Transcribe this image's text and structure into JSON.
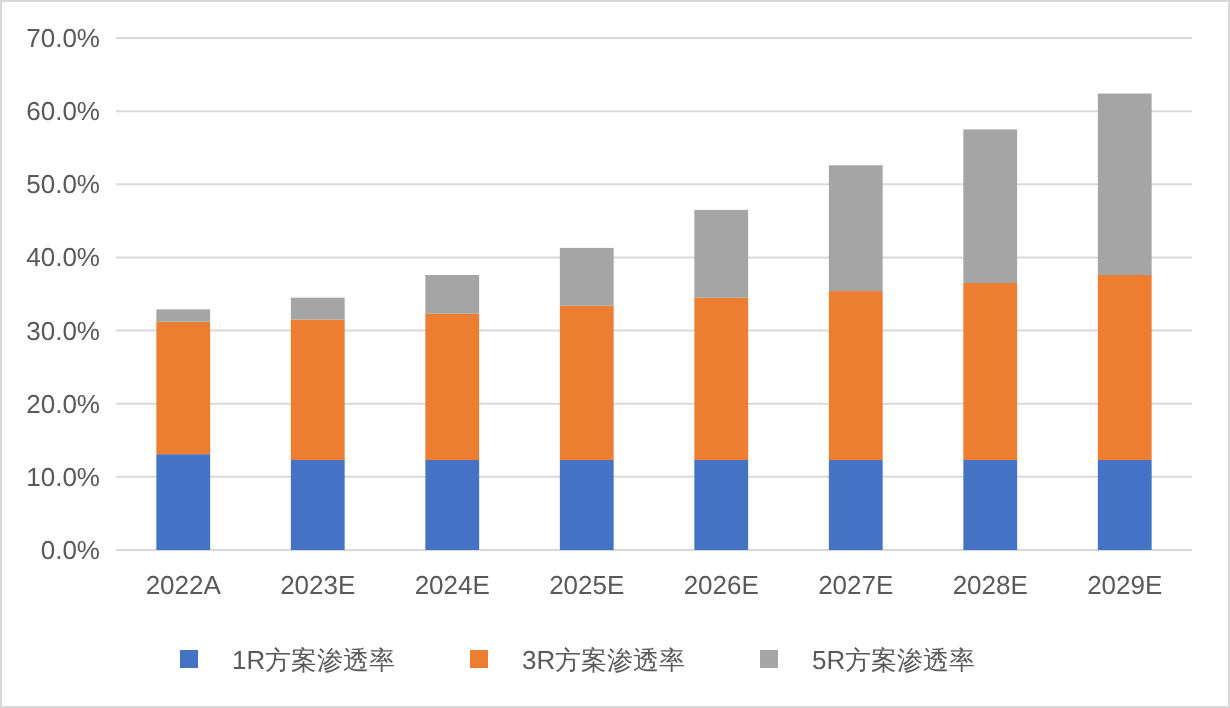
{
  "chart_data": {
    "type": "bar",
    "stacked": true,
    "categories": [
      "2022A",
      "2023E",
      "2024E",
      "2025E",
      "2026E",
      "2027E",
      "2028E",
      "2029E"
    ],
    "series": [
      {
        "name": "1R方案渗透率",
        "color": "#4472c4",
        "values": [
          13.1,
          12.3,
          12.3,
          12.3,
          12.3,
          12.3,
          12.3,
          12.3
        ]
      },
      {
        "name": "3R方案渗透率",
        "color": "#ed7d31",
        "values": [
          18.1,
          19.2,
          20.0,
          21.1,
          22.2,
          23.1,
          24.2,
          25.3
        ]
      },
      {
        "name": "5R方案渗透率",
        "color": "#a5a5a5",
        "values": [
          1.7,
          3.0,
          5.3,
          7.9,
          12.0,
          17.2,
          21.0,
          24.8
        ]
      }
    ],
    "ylim": [
      0,
      70
    ],
    "yticks": [
      {
        "value": 0,
        "label": "0.0%"
      },
      {
        "value": 10,
        "label": "10.0%"
      },
      {
        "value": 20,
        "label": "20.0%"
      },
      {
        "value": 30,
        "label": "30.0%"
      },
      {
        "value": 40,
        "label": "40.0%"
      },
      {
        "value": 50,
        "label": "50.0%"
      },
      {
        "value": 60,
        "label": "60.0%"
      },
      {
        "value": 70,
        "label": "70.0%"
      }
    ],
    "grid": "y",
    "legend": "bottom"
  }
}
